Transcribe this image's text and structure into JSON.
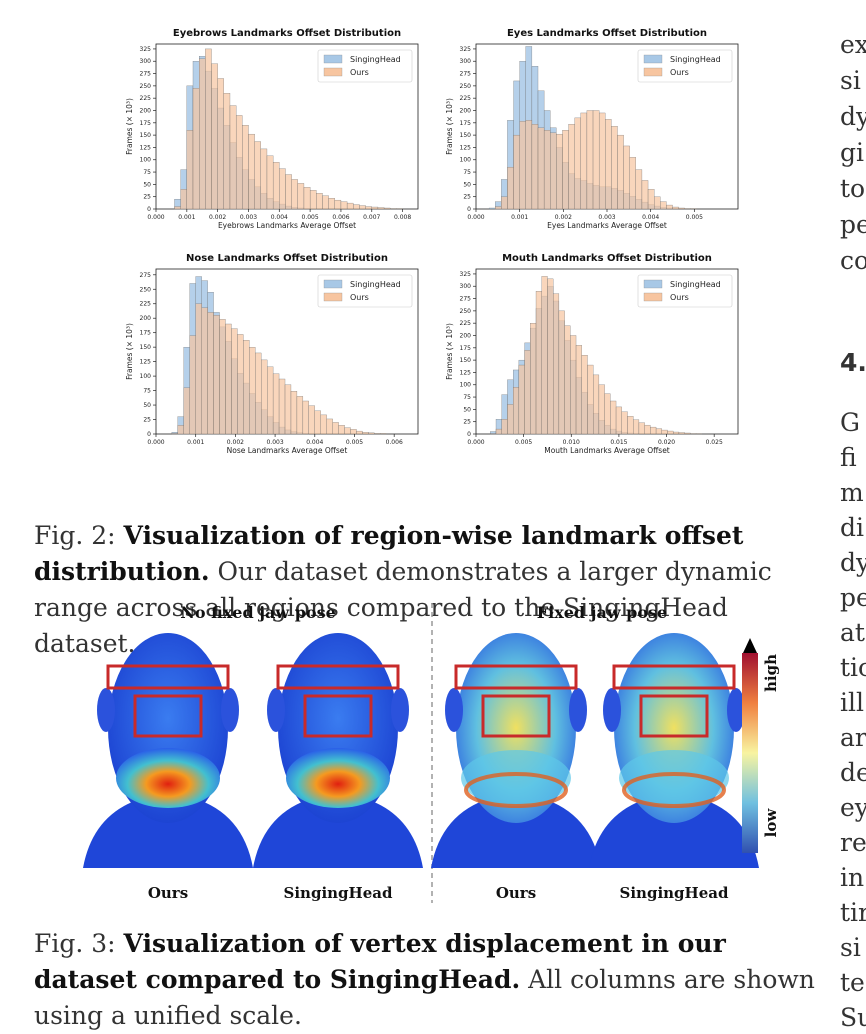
{
  "chart_data": [
    {
      "type": "bar",
      "title": "Eyebrows Landmarks Offset Distribution",
      "xlabel": "Eyebrows Landmarks Average Offset",
      "ylabel": "Frames (× 10³)",
      "xlim": [
        0.0,
        0.0085
      ],
      "ylim": [
        0,
        335
      ],
      "xticks": [
        "0.000",
        "0.001",
        "0.002",
        "0.003",
        "0.004",
        "0.005",
        "0.006",
        "0.007",
        "0.008"
      ],
      "yticks": [
        "0",
        "25",
        "50",
        "75",
        "100",
        "125",
        "150",
        "175",
        "200",
        "225",
        "250",
        "275",
        "300",
        "325"
      ],
      "bin_start": 0.0006,
      "bin_width": 0.0002,
      "legend": "top-right",
      "series": [
        {
          "name": "SingingHead",
          "color": "#a8c8e6",
          "values": [
            20,
            80,
            250,
            300,
            310,
            280,
            245,
            205,
            170,
            135,
            105,
            80,
            60,
            45,
            32,
            22,
            15,
            10,
            6,
            3,
            2,
            1,
            0,
            0,
            0,
            0,
            0,
            0,
            0,
            0,
            0,
            0,
            0,
            0,
            0,
            0,
            0,
            0
          ]
        },
        {
          "name": "Ours",
          "color": "#f7c5a0",
          "values": [
            5,
            40,
            160,
            245,
            305,
            325,
            295,
            265,
            235,
            210,
            190,
            170,
            152,
            137,
            122,
            108,
            95,
            82,
            70,
            60,
            52,
            44,
            38,
            32,
            27,
            22,
            18,
            15,
            12,
            9,
            7,
            5,
            4,
            3,
            2,
            1,
            1,
            0
          ]
        }
      ]
    },
    {
      "type": "bar",
      "title": "Eyes Landmarks Offset Distribution",
      "xlabel": "Eyes Landmarks Average Offset",
      "ylabel": "Frames (× 10³)",
      "xlim": [
        0.0,
        0.006
      ],
      "ylim": [
        0,
        335
      ],
      "xticks": [
        "0.000",
        "0.001",
        "0.002",
        "0.003",
        "0.004",
        "0.005"
      ],
      "yticks": [
        "0",
        "25",
        "50",
        "75",
        "100",
        "125",
        "150",
        "175",
        "200",
        "225",
        "250",
        "275",
        "300",
        "325"
      ],
      "bin_start": 0.0003,
      "bin_width": 0.00014,
      "legend": "top-right",
      "series": [
        {
          "name": "SingingHead",
          "color": "#a8c8e6",
          "values": [
            2,
            15,
            60,
            180,
            260,
            300,
            330,
            290,
            240,
            200,
            165,
            125,
            95,
            72,
            62,
            58,
            52,
            48,
            45,
            45,
            42,
            38,
            32,
            26,
            20,
            14,
            9,
            6,
            3,
            2,
            1,
            0,
            0,
            0,
            0,
            0,
            0,
            0,
            0
          ]
        },
        {
          "name": "Ours",
          "color": "#f7c5a0",
          "values": [
            0,
            5,
            25,
            85,
            150,
            178,
            180,
            172,
            165,
            160,
            155,
            152,
            160,
            172,
            185,
            195,
            200,
            200,
            195,
            182,
            168,
            150,
            128,
            105,
            80,
            58,
            40,
            25,
            15,
            8,
            4,
            2,
            1,
            1,
            0,
            0,
            0,
            0,
            0
          ]
        }
      ]
    },
    {
      "type": "bar",
      "title": "Nose Landmarks Offset Distribution",
      "xlabel": "Nose Landmarks Average Offset",
      "ylabel": "Frames (× 10³)",
      "xlim": [
        0.0,
        0.0066
      ],
      "ylim": [
        0,
        285
      ],
      "xticks": [
        "0.000",
        "0.001",
        "0.002",
        "0.003",
        "0.004",
        "0.005",
        "0.006"
      ],
      "yticks": [
        "0",
        "25",
        "50",
        "75",
        "100",
        "125",
        "150",
        "175",
        "200",
        "225",
        "250",
        "275"
      ],
      "bin_start": 0.0004,
      "bin_width": 0.00015,
      "legend": "top-right",
      "series": [
        {
          "name": "SingingHead",
          "color": "#a8c8e6",
          "values": [
            3,
            30,
            150,
            260,
            272,
            265,
            245,
            210,
            185,
            160,
            130,
            105,
            88,
            70,
            55,
            42,
            30,
            20,
            12,
            7,
            4,
            2,
            1,
            0,
            0,
            0,
            0,
            0,
            0,
            0,
            0,
            0,
            0,
            0,
            0,
            0,
            0,
            0
          ]
        },
        {
          "name": "Ours",
          "color": "#f7c5a0",
          "values": [
            1,
            15,
            80,
            170,
            225,
            218,
            210,
            205,
            198,
            190,
            182,
            172,
            162,
            150,
            140,
            128,
            116,
            104,
            95,
            85,
            74,
            65,
            57,
            49,
            40,
            33,
            26,
            20,
            15,
            11,
            8,
            5,
            3,
            2,
            1,
            1,
            0,
            0
          ]
        }
      ]
    },
    {
      "type": "bar",
      "title": "Mouth Landmarks Offset Distribution",
      "xlabel": "Mouth Landmarks Average Offset",
      "ylabel": "Frames (× 10³)",
      "xlim": [
        0.0,
        0.0275
      ],
      "ylim": [
        0,
        335
      ],
      "xticks": [
        "0.000",
        "0.005",
        "0.010",
        "0.015",
        "0.020",
        "0.025"
      ],
      "yticks": [
        "0",
        "25",
        "50",
        "75",
        "100",
        "125",
        "150",
        "175",
        "200",
        "225",
        "250",
        "275",
        "300",
        "325"
      ],
      "bin_start": 0.0015,
      "bin_width": 0.0006,
      "legend": "top-right",
      "series": [
        {
          "name": "SingingHead",
          "color": "#a8c8e6",
          "values": [
            5,
            30,
            80,
            110,
            130,
            150,
            185,
            215,
            255,
            280,
            300,
            270,
            230,
            190,
            150,
            115,
            85,
            60,
            42,
            28,
            18,
            10,
            6,
            3,
            2,
            1,
            0,
            0,
            0,
            0,
            0,
            0,
            0,
            0,
            0,
            0,
            0,
            0
          ]
        },
        {
          "name": "Ours",
          "color": "#f7c5a0",
          "values": [
            1,
            10,
            30,
            60,
            95,
            140,
            170,
            225,
            290,
            320,
            315,
            285,
            250,
            220,
            200,
            180,
            160,
            140,
            120,
            100,
            82,
            67,
            55,
            45,
            36,
            29,
            23,
            18,
            14,
            11,
            8,
            6,
            4,
            3,
            2,
            1,
            1,
            0
          ]
        }
      ]
    }
  ],
  "captions": {
    "fig2": {
      "label": "Fig. 2: ",
      "bold": "Visualization of region-wise landmark offset distribution.",
      "text": " Our dataset demonstrates a larger dynamic range across all regions compared to the SingingHead dataset."
    },
    "fig3": {
      "label": "Fig. 3: ",
      "bold": "Visualization of vertex displacement in our dataset compared to SingingHead.",
      "text": " All columns are shown using a unified scale."
    }
  },
  "figure3": {
    "group_left": "No fixed jaw pose",
    "group_right": "Fixed jaw pose",
    "labels": [
      "Ours",
      "SingingHead",
      "Ours",
      "SingingHead"
    ],
    "colorbar_high": "high",
    "colorbar_low": "low"
  },
  "right_column": {
    "lines_top": [
      "ex",
      "si",
      "dy",
      "gi",
      "to",
      "pe",
      "co"
    ],
    "heading": "4.",
    "lines_bottom": [
      "G",
      "fi",
      "m",
      "di",
      "dy",
      "pe",
      "at",
      "tio",
      "ill",
      "ar",
      "de",
      "ey",
      "re",
      "in",
      "tir",
      "si",
      "te",
      "Su"
    ]
  }
}
